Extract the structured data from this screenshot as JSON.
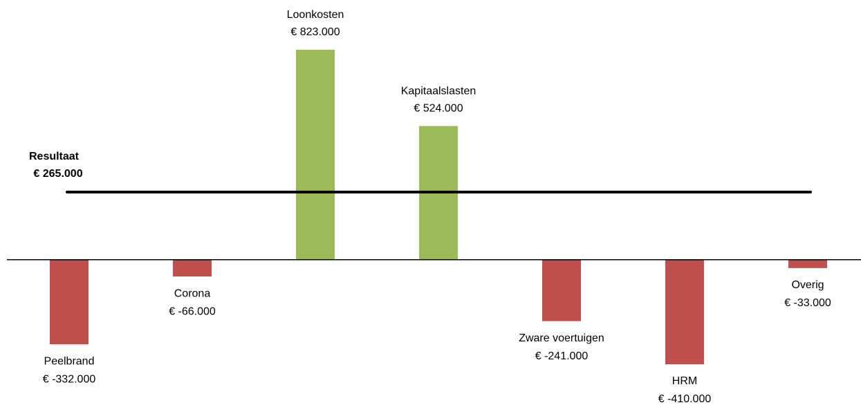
{
  "chart_data": {
    "type": "bar",
    "categories": [
      "Peelbrand",
      "Corona",
      "Loonkosten",
      "Kapitaalslasten",
      "Zware voertuigen",
      "HRM",
      "Overig"
    ],
    "values": [
      -332000,
      -66000,
      823000,
      524000,
      -241000,
      -410000,
      -33000
    ],
    "value_labels": [
      "€ -332.000",
      "€ -66.000",
      "€ 823.000",
      "€ 524.000",
      "€ -241.000",
      "€ -410.000",
      "€ -33.000"
    ],
    "positive_color": "#9bbb59",
    "negative_color": "#c0504d",
    "reference_line": {
      "label": "Resultaat",
      "value_label": "€ 265.000",
      "value": 265000,
      "color": "#000000"
    }
  }
}
